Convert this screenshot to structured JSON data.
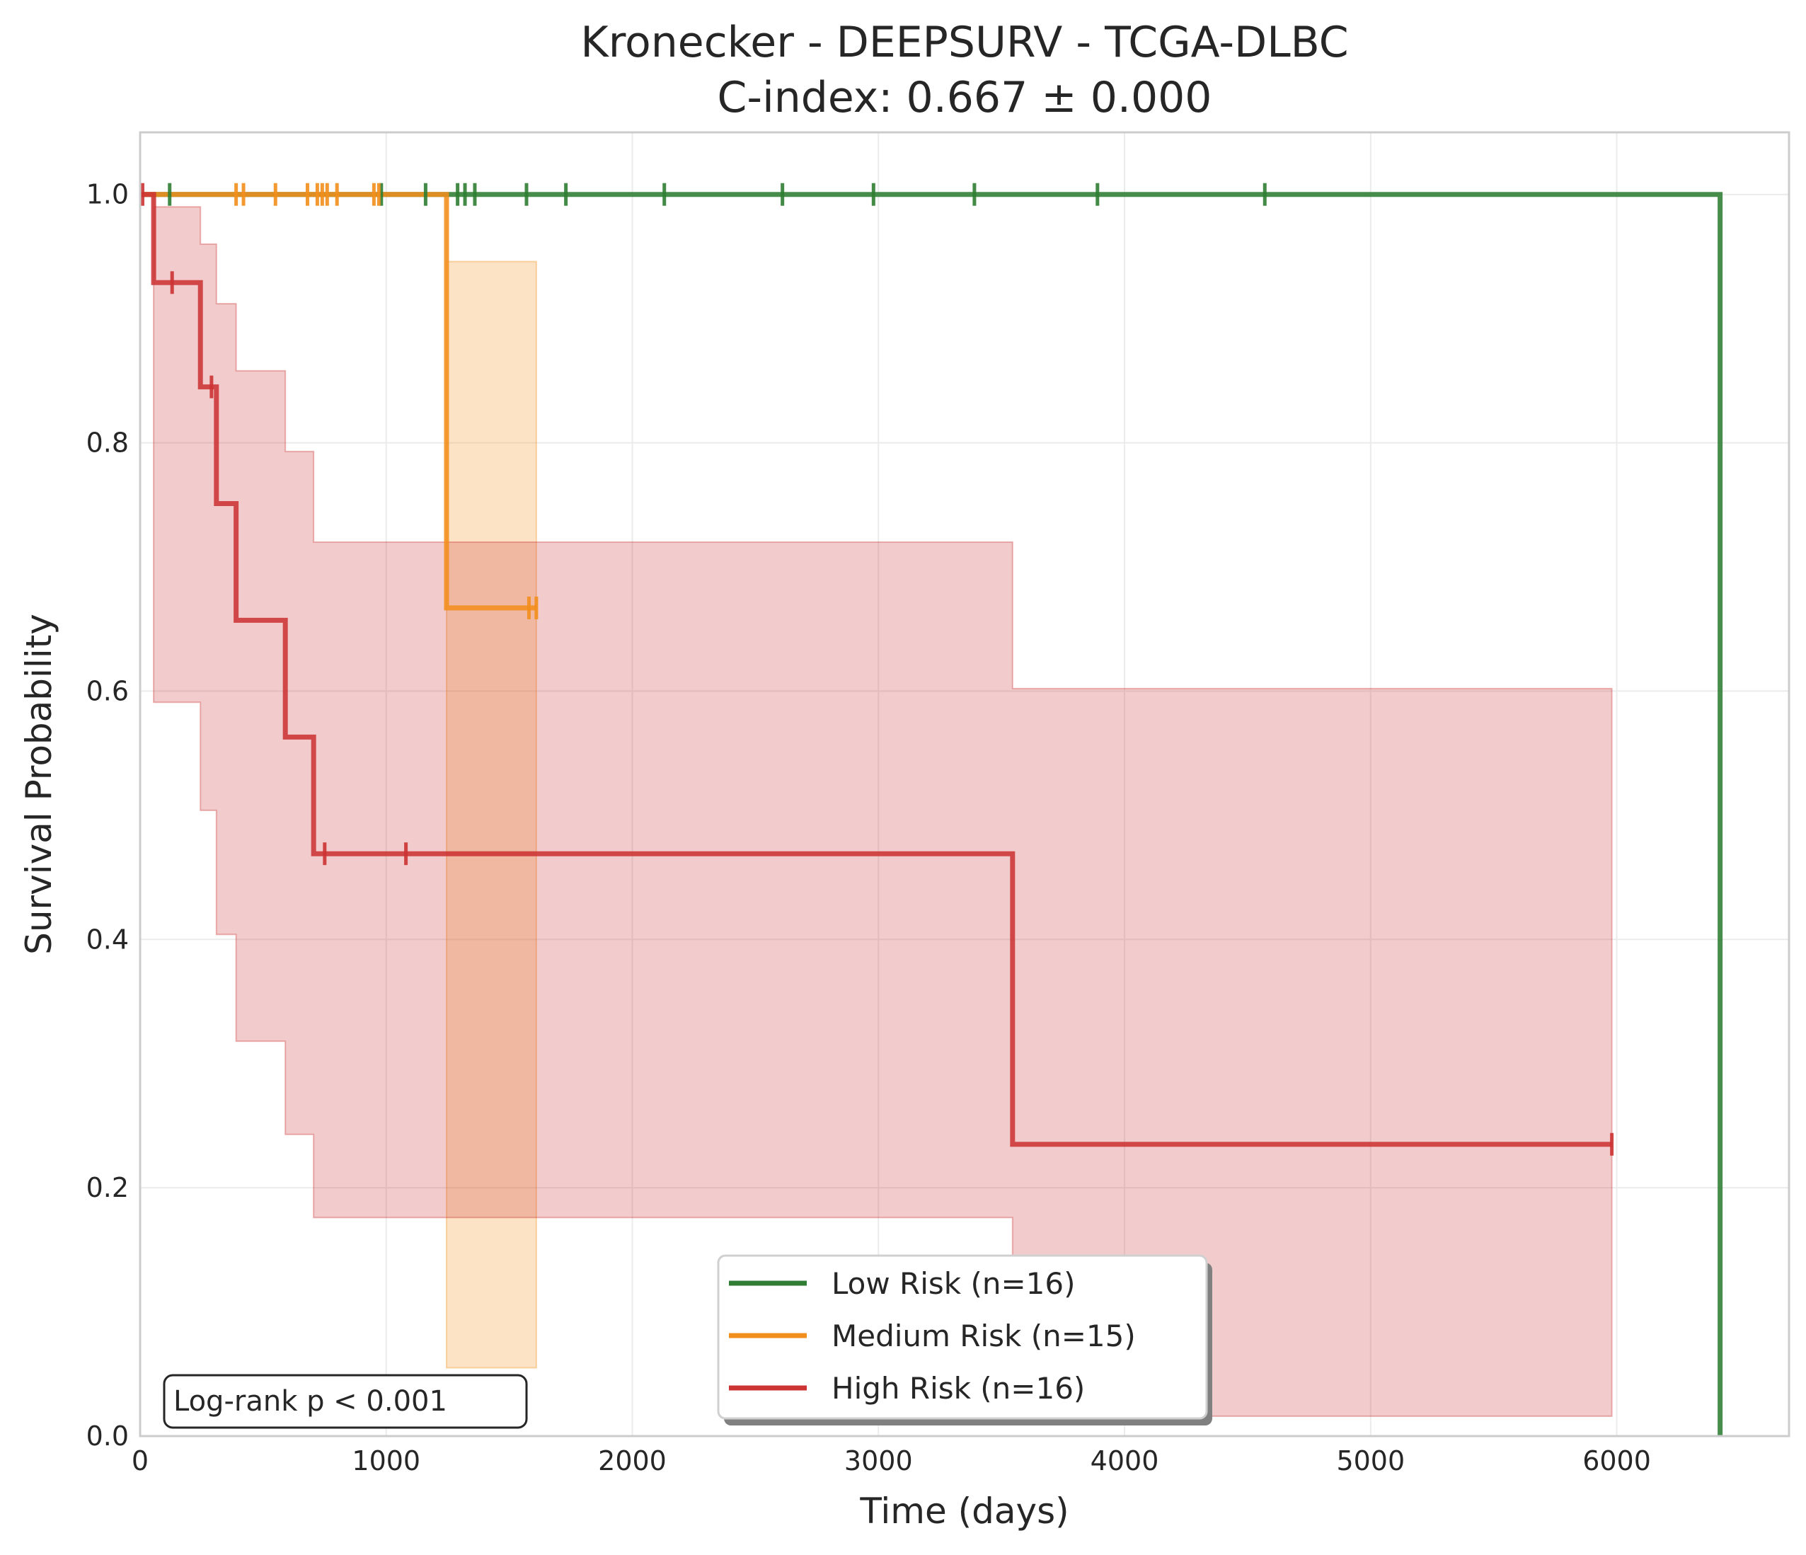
{
  "chart_data": {
    "type": "line",
    "title": "Kronecker - DEEPSURV - TCGA-DLBC",
    "subtitle": "C-index: 0.667 ± 0.000",
    "xlabel": "Time (days)",
    "ylabel": "Survival Probability",
    "xlim": [
      0,
      6700
    ],
    "ylim": [
      0,
      1.05
    ],
    "xticks": [
      0,
      1000,
      2000,
      3000,
      4000,
      5000,
      6000
    ],
    "yticks": [
      0.0,
      0.2,
      0.4,
      0.6,
      0.8,
      1.0
    ],
    "xtick_labels": [
      "0",
      "1000",
      "2000",
      "3000",
      "4000",
      "5000",
      "6000"
    ],
    "ytick_labels": [
      "0.0",
      "0.2",
      "0.4",
      "0.6",
      "0.8",
      "1.0"
    ],
    "grid": true,
    "legend_position": "bottom-center",
    "annotation": "Log-rank p < 0.001",
    "series": [
      {
        "name": "Low Risk (n=16)",
        "color": "#2e7d32",
        "steps": [
          [
            0,
            1.0
          ],
          [
            6420,
            1.0
          ],
          [
            6420,
            0.0
          ]
        ],
        "ci": [],
        "censored": [
          [
            120,
            1.0
          ],
          [
            980,
            1.0
          ],
          [
            1160,
            1.0
          ],
          [
            1290,
            1.0
          ],
          [
            1320,
            1.0
          ],
          [
            1360,
            1.0
          ],
          [
            1570,
            1.0
          ],
          [
            1730,
            1.0
          ],
          [
            2130,
            1.0
          ],
          [
            2610,
            1.0
          ],
          [
            2980,
            1.0
          ],
          [
            3390,
            1.0
          ],
          [
            3890,
            1.0
          ],
          [
            4570,
            1.0
          ]
        ]
      },
      {
        "name": "Medium Risk (n=15)",
        "color": "#f28e1c",
        "steps": [
          [
            0,
            1.0
          ],
          [
            1245,
            1.0
          ],
          [
            1245,
            0.667
          ],
          [
            1610,
            0.667
          ]
        ],
        "ci": [
          [
            0,
            1.0,
            1.0
          ],
          [
            1245,
            0.946,
            0.055
          ],
          [
            1610,
            0.946,
            0.055
          ]
        ],
        "censored": [
          [
            390,
            1.0
          ],
          [
            420,
            1.0
          ],
          [
            550,
            1.0
          ],
          [
            680,
            1.0
          ],
          [
            720,
            1.0
          ],
          [
            740,
            1.0
          ],
          [
            760,
            1.0
          ],
          [
            800,
            1.0
          ],
          [
            950,
            1.0
          ],
          [
            970,
            1.0
          ],
          [
            1580,
            0.667
          ],
          [
            1610,
            0.667
          ]
        ]
      },
      {
        "name": "High Risk (n=16)",
        "color": "#cc3333",
        "steps": [
          [
            0,
            1.0
          ],
          [
            55,
            1.0
          ],
          [
            55,
            0.929
          ],
          [
            245,
            0.929
          ],
          [
            245,
            0.845
          ],
          [
            310,
            0.845
          ],
          [
            310,
            0.751
          ],
          [
            390,
            0.751
          ],
          [
            390,
            0.657
          ],
          [
            590,
            0.657
          ],
          [
            590,
            0.563
          ],
          [
            705,
            0.563
          ],
          [
            705,
            0.469
          ],
          [
            3545,
            0.469
          ],
          [
            3545,
            0.235
          ],
          [
            5980,
            0.235
          ]
        ],
        "ci": [
          [
            0,
            1.0,
            1.0
          ],
          [
            55,
            0.99,
            0.591
          ],
          [
            245,
            0.96,
            0.504
          ],
          [
            310,
            0.912,
            0.404
          ],
          [
            390,
            0.858,
            0.318
          ],
          [
            590,
            0.793,
            0.243
          ],
          [
            705,
            0.72,
            0.176
          ],
          [
            3545,
            0.602,
            0.016
          ],
          [
            5980,
            0.602,
            0.016
          ]
        ],
        "censored": [
          [
            10,
            1.0
          ],
          [
            130,
            0.929
          ],
          [
            290,
            0.845
          ],
          [
            750,
            0.469
          ],
          [
            1080,
            0.469
          ],
          [
            5980,
            0.235
          ]
        ]
      }
    ]
  }
}
